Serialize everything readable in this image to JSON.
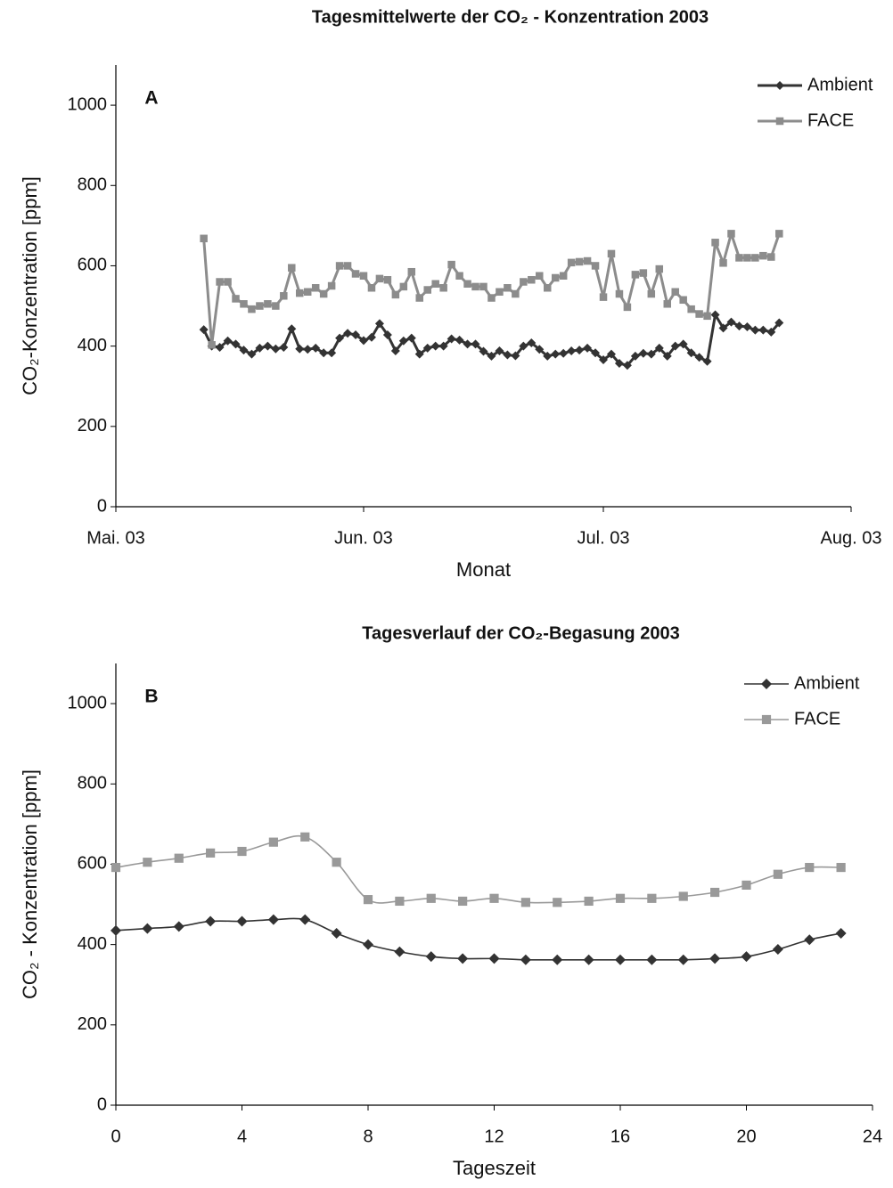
{
  "chart_data": [
    {
      "type": "line",
      "title": "Tagesmittelwerte der CO₂ - Konzentration 2003",
      "annotation": "A",
      "xlabel": "Monat",
      "ylabel": "CO₂-Konzentration [ppm]",
      "x": [
        11,
        12,
        13,
        14,
        15,
        16,
        17,
        18,
        19,
        20,
        21,
        22,
        23,
        24,
        25,
        26,
        27,
        28,
        29,
        30,
        31,
        32,
        33,
        34,
        35,
        36,
        37,
        38,
        39,
        40,
        41,
        42,
        43,
        44,
        45,
        46,
        47,
        48,
        49,
        50,
        51,
        52,
        53,
        54,
        55,
        56,
        57,
        58,
        59,
        60,
        61,
        62,
        63,
        64,
        65,
        66,
        67,
        68,
        69,
        70,
        71,
        72,
        73,
        74,
        75,
        76,
        77,
        78,
        79,
        80,
        81,
        82,
        83
      ],
      "series": [
        {
          "name": "Ambient",
          "color": "#333333",
          "marker": "diamond",
          "values": [
            441,
            400,
            397,
            413,
            405,
            390,
            380,
            395,
            400,
            393,
            397,
            443,
            393,
            392,
            395,
            383,
            383,
            420,
            432,
            428,
            414,
            422,
            456,
            428,
            388,
            413,
            420,
            380,
            395,
            400,
            400,
            418,
            415,
            405,
            405,
            387,
            375,
            388,
            378,
            376,
            400,
            408,
            392,
            375,
            380,
            382,
            388,
            390,
            395,
            383,
            366,
            380,
            357,
            352,
            375,
            382,
            380,
            395,
            375,
            400,
            405,
            383,
            372,
            362,
            478,
            445,
            460,
            450,
            448,
            440,
            440,
            435,
            458
          ]
        },
        {
          "name": "FACE",
          "color": "#8c8c8c",
          "marker": "square",
          "values": [
            668,
            403,
            560,
            560,
            518,
            505,
            492,
            500,
            505,
            500,
            525,
            595,
            532,
            535,
            545,
            530,
            550,
            600,
            600,
            580,
            575,
            545,
            568,
            565,
            528,
            548,
            585,
            520,
            540,
            555,
            545,
            603,
            575,
            555,
            548,
            548,
            520,
            535,
            545,
            530,
            560,
            565,
            575,
            545,
            570,
            575,
            608,
            610,
            612,
            600,
            522,
            630,
            530,
            497,
            578,
            582,
            530,
            592,
            505,
            535,
            515,
            492,
            480,
            475,
            658,
            607,
            680,
            620,
            620,
            620,
            625,
            622,
            680
          ]
        }
      ],
      "xlim": [
        0,
        92
      ],
      "xticks": [
        {
          "value": 0,
          "label": "Mai. 03"
        },
        {
          "value": 31,
          "label": "Jun. 03"
        },
        {
          "value": 61,
          "label": "Jul. 03"
        },
        {
          "value": 92,
          "label": "Aug. 03"
        }
      ],
      "ylim": [
        0,
        1100
      ],
      "yticks": [
        0,
        200,
        400,
        600,
        800,
        1000
      ],
      "smooth": false,
      "legend": "upper right"
    },
    {
      "type": "line",
      "title": "Tagesverlauf der CO₂-Begasung 2003",
      "annotation": "B",
      "xlabel": "Tageszeit",
      "ylabel": "CO₂ - Konzentration [ppm]",
      "x": [
        0,
        1,
        2,
        3,
        4,
        5,
        6,
        7,
        8,
        9,
        10,
        11,
        12,
        13,
        14,
        15,
        16,
        17,
        18,
        19,
        20,
        21,
        22,
        23
      ],
      "series": [
        {
          "name": "Ambient",
          "color": "#333333",
          "marker": "diamond",
          "values": [
            435,
            440,
            445,
            458,
            458,
            462,
            462,
            428,
            400,
            382,
            370,
            365,
            365,
            362,
            362,
            362,
            362,
            362,
            362,
            365,
            370,
            388,
            412,
            428
          ]
        },
        {
          "name": "FACE",
          "color": "#999999",
          "marker": "square",
          "values": [
            592,
            605,
            615,
            628,
            632,
            655,
            668,
            605,
            512,
            508,
            515,
            508,
            515,
            505,
            505,
            508,
            515,
            515,
            520,
            530,
            548,
            575,
            592,
            592
          ]
        }
      ],
      "xlim": [
        0,
        24
      ],
      "xticks": [
        0,
        4,
        8,
        12,
        16,
        20,
        24
      ],
      "ylim": [
        0,
        1100
      ],
      "yticks": [
        0,
        200,
        400,
        600,
        800,
        1000
      ],
      "smooth": true,
      "legend": "upper right"
    }
  ]
}
